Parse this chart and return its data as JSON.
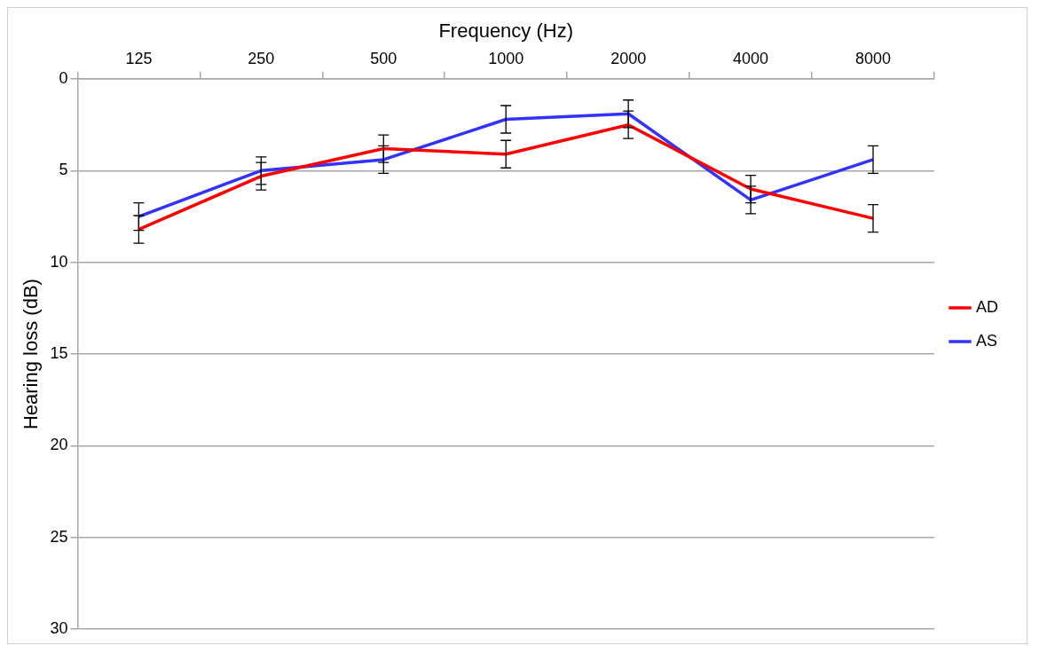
{
  "chart_data": {
    "type": "line",
    "xlabel": "Frequency (Hz)",
    "ylabel": "Hearing loss (dB)",
    "categories": [
      "125",
      "250",
      "500",
      "1000",
      "2000",
      "4000",
      "8000"
    ],
    "series": [
      {
        "name": "AD",
        "color": "#ff0000",
        "values": [
          8.2,
          5.3,
          3.8,
          4.1,
          2.5,
          6.0,
          7.6
        ],
        "errors": [
          0.75,
          0.75,
          0.75,
          0.75,
          0.75,
          0.75,
          0.75
        ]
      },
      {
        "name": "AS",
        "color": "#3333ff",
        "values": [
          7.5,
          5.0,
          4.4,
          2.2,
          1.9,
          6.6,
          4.4
        ],
        "errors": [
          0.75,
          0.75,
          0.75,
          0.75,
          0.75,
          0.75,
          0.75
        ]
      }
    ],
    "ylim": [
      30,
      0
    ],
    "yticks": [
      0,
      5,
      10,
      15,
      20,
      25,
      30
    ],
    "grid": "y",
    "legend": "right",
    "marker": "none",
    "line_style": "solid"
  }
}
